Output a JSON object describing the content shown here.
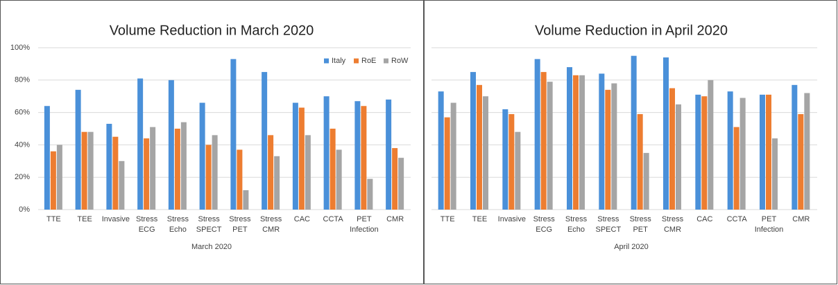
{
  "chart_data": [
    {
      "type": "bar",
      "title": "Volume Reduction in March 2020",
      "x_label": "March 2020",
      "categories": [
        "TTE",
        "TEE",
        "Invasive",
        "Stress ECG",
        "Stress Echo",
        "Stress SPECT",
        "Stress PET",
        "Stress CMR",
        "CAC",
        "CCTA",
        "PET Infection",
        "CMR"
      ],
      "series": [
        {
          "name": "Italy",
          "color": "#4a90d9",
          "values": [
            64,
            74,
            53,
            81,
            80,
            66,
            93,
            85,
            66,
            70,
            67,
            68
          ]
        },
        {
          "name": "RoE",
          "color": "#ed7d31",
          "values": [
            36,
            48,
            45,
            44,
            50,
            40,
            37,
            46,
            63,
            50,
            64,
            38
          ]
        },
        {
          "name": "RoW",
          "color": "#a5a5a5",
          "values": [
            40,
            48,
            30,
            51,
            54,
            46,
            12,
            33,
            46,
            37,
            19,
            32
          ]
        }
      ],
      "ylim": [
        0,
        100
      ],
      "yticks": [
        {
          "value": 0,
          "label": "0%"
        },
        {
          "value": 20,
          "label": "20%"
        },
        {
          "value": 40,
          "label": "40%"
        },
        {
          "value": 60,
          "label": "60%"
        },
        {
          "value": 80,
          "label": "80%"
        },
        {
          "value": 100,
          "label": "100%"
        }
      ],
      "grid": true,
      "legend": "upper right"
    },
    {
      "type": "bar",
      "title": "Volume Reduction in April 2020",
      "x_label": "April 2020",
      "categories": [
        "TTE",
        "TEE",
        "Invasive",
        "Stress ECG",
        "Stress Echo",
        "Stress SPECT",
        "Stress PET",
        "Stress CMR",
        "CAC",
        "CCTA",
        "PET Infection",
        "CMR"
      ],
      "series": [
        {
          "color": "#4a90d9",
          "values": [
            73,
            85,
            62,
            93,
            88,
            84,
            95,
            94,
            71,
            73,
            71,
            77
          ]
        },
        {
          "color": "#ed7d31",
          "values": [
            57,
            77,
            59,
            85,
            83,
            74,
            59,
            75,
            70,
            51,
            71,
            59
          ]
        },
        {
          "color": "#a5a5a5",
          "values": [
            66,
            70,
            48,
            79,
            83,
            78,
            35,
            65,
            80,
            69,
            44,
            72
          ]
        }
      ],
      "ylim": [
        0,
        100
      ],
      "yticks": [
        0,
        20,
        40,
        60,
        80,
        100
      ],
      "grid": true,
      "show_tick_labels": false
    }
  ]
}
